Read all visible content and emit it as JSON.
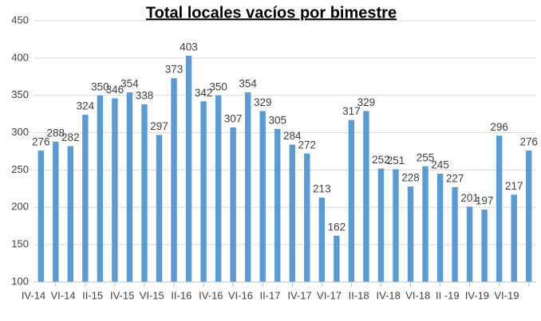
{
  "chart_data": {
    "type": "bar",
    "title": "Total locales vacíos por bimestre",
    "categories": [
      "IV-14",
      null,
      "VI-14",
      null,
      "II-15",
      null,
      "IV-15",
      null,
      "VI-15",
      null,
      "II-16",
      null,
      "IV-16",
      null,
      "VI-16",
      null,
      "II-17",
      null,
      "IV-17",
      null,
      "VI-17",
      null,
      "II-18",
      null,
      "IV-18",
      null,
      "VI-18",
      null,
      "II -19",
      null,
      "IV-19",
      null,
      "VI-19",
      null
    ],
    "values": [
      276,
      288,
      282,
      324,
      350,
      346,
      354,
      338,
      297,
      373,
      403,
      342,
      350,
      307,
      354,
      329,
      305,
      284,
      272,
      213,
      162,
      317,
      329,
      252,
      251,
      228,
      255,
      245,
      227,
      201,
      197,
      296,
      217,
      276
    ],
    "color": "#5b9bd5",
    "ylim": [
      100,
      450
    ],
    "yticks": [
      100,
      150,
      200,
      250,
      300,
      350,
      400,
      450
    ],
    "grid": true
  }
}
